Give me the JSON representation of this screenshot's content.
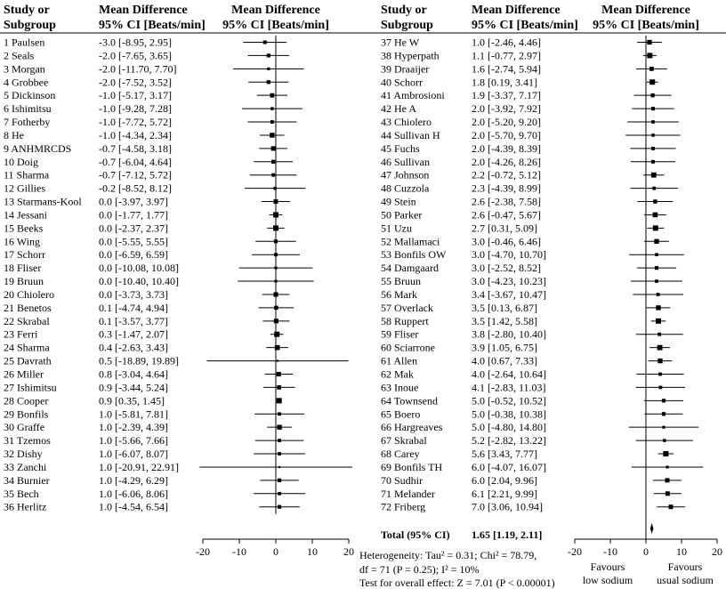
{
  "headers": {
    "study_line1": "Study or",
    "study_line2": "Subgroup",
    "md_line1": "Mean Difference",
    "md_line2": "95% CI [Beats/min]"
  },
  "chart_data": {
    "type": "forest",
    "measure": "Mean Difference, 95% CI [Beats/min]",
    "xlim": [
      -20,
      20
    ],
    "xticks": [
      "-20",
      "-10",
      "0",
      "10",
      "20"
    ],
    "studies": [
      {
        "id": 1,
        "name": "Paulsen",
        "md": -3.0,
        "ci": "-3.0 [-8.95, 2.95]",
        "lo": -8.95,
        "hi": 2.95
      },
      {
        "id": 2,
        "name": "Seals",
        "md": -2.0,
        "ci": "-2.0 [-7.65, 3.65]",
        "lo": -7.65,
        "hi": 3.65
      },
      {
        "id": 3,
        "name": "Morgan",
        "md": -2.0,
        "ci": "-2.0 [-11.70, 7.70]",
        "lo": -11.7,
        "hi": 7.7
      },
      {
        "id": 4,
        "name": "Grobbee",
        "md": -2.0,
        "ci": "-2.0 [-7.52, 3.52]",
        "lo": -7.52,
        "hi": 3.52
      },
      {
        "id": 5,
        "name": "Dickinson",
        "md": -1.0,
        "ci": "-1.0 [-5.17, 3.17]",
        "lo": -5.17,
        "hi": 3.17
      },
      {
        "id": 6,
        "name": "Ishimitsu",
        "md": -1.0,
        "ci": "-1.0 [-9.28, 7.28]",
        "lo": -9.28,
        "hi": 7.28
      },
      {
        "id": 7,
        "name": "Fotherby",
        "md": -1.0,
        "ci": "-1.0 [-7.72, 5.72]",
        "lo": -7.72,
        "hi": 5.72
      },
      {
        "id": 8,
        "name": "He",
        "md": -1.0,
        "ci": "-1.0 [-4.34, 2.34]",
        "lo": -4.34,
        "hi": 2.34
      },
      {
        "id": 9,
        "name": "ANHMRCDS",
        "md": -0.7,
        "ci": "-0.7 [-4.58, 3.18]",
        "lo": -4.58,
        "hi": 3.18
      },
      {
        "id": 10,
        "name": "Doig",
        "md": -0.7,
        "ci": "-0.7 [-6.04, 4.64]",
        "lo": -6.04,
        "hi": 4.64
      },
      {
        "id": 11,
        "name": "Sharma",
        "md": -0.7,
        "ci": "-0.7 [-7.12, 5.72]",
        "lo": -7.12,
        "hi": 5.72
      },
      {
        "id": 12,
        "name": "Gillies",
        "md": -0.2,
        "ci": "-0.2 [-8.52, 8.12]",
        "lo": -8.52,
        "hi": 8.12
      },
      {
        "id": 13,
        "name": "Starmans-Kool",
        "md": 0.0,
        "ci": "0.0 [-3.97, 3.97]",
        "lo": -3.97,
        "hi": 3.97
      },
      {
        "id": 14,
        "name": "Jessani",
        "md": 0.0,
        "ci": "0.0 [-1.77, 1.77]",
        "lo": -1.77,
        "hi": 1.77
      },
      {
        "id": 15,
        "name": "Beeks",
        "md": 0.0,
        "ci": "0.0 [-2.37, 2.37]",
        "lo": -2.37,
        "hi": 2.37
      },
      {
        "id": 16,
        "name": "Wing",
        "md": 0.0,
        "ci": "0.0 [-5.55, 5.55]",
        "lo": -5.55,
        "hi": 5.55
      },
      {
        "id": 17,
        "name": "Schorr",
        "md": 0.0,
        "ci": "0.0 [-6.59, 6.59]",
        "lo": -6.59,
        "hi": 6.59
      },
      {
        "id": 18,
        "name": "Fliser",
        "md": 0.0,
        "ci": "0.0 [-10.08, 10.08]",
        "lo": -10.08,
        "hi": 10.08
      },
      {
        "id": 19,
        "name": "Bruun",
        "md": 0.0,
        "ci": "0.0 [-10.40, 10.40]",
        "lo": -10.4,
        "hi": 10.4
      },
      {
        "id": 20,
        "name": "Chiolero",
        "md": 0.0,
        "ci": "0.0 [-3.73, 3.73]",
        "lo": -3.73,
        "hi": 3.73
      },
      {
        "id": 21,
        "name": "Benetos",
        "md": 0.1,
        "ci": "0.1 [-4.74, 4.94]",
        "lo": -4.74,
        "hi": 4.94
      },
      {
        "id": 22,
        "name": "Skrabal",
        "md": 0.1,
        "ci": "0.1 [-3.57, 3.77]",
        "lo": -3.57,
        "hi": 3.77
      },
      {
        "id": 23,
        "name": "Ferri",
        "md": 0.3,
        "ci": "0.3 [-1.47, 2.07]",
        "lo": -1.47,
        "hi": 2.07
      },
      {
        "id": 24,
        "name": "Sharma",
        "md": 0.4,
        "ci": "0.4 [-2.63, 3.43]",
        "lo": -2.63,
        "hi": 3.43
      },
      {
        "id": 25,
        "name": "Davrath",
        "md": 0.5,
        "ci": "0.5 [-18.89, 19.89]",
        "lo": -18.89,
        "hi": 19.89
      },
      {
        "id": 26,
        "name": "Miller",
        "md": 0.8,
        "ci": "0.8 [-3.04, 4.64]",
        "lo": -3.04,
        "hi": 4.64
      },
      {
        "id": 27,
        "name": "Ishimitsu",
        "md": 0.9,
        "ci": "0.9 [-3.44, 5.24]",
        "lo": -3.44,
        "hi": 5.24
      },
      {
        "id": 28,
        "name": "Cooper",
        "md": 0.9,
        "ci": "0.9 [0.35, 1.45]",
        "lo": 0.35,
        "hi": 1.45
      },
      {
        "id": 29,
        "name": "Bonfils",
        "md": 1.0,
        "ci": "1.0 [-5.81, 7.81]",
        "lo": -5.81,
        "hi": 7.81
      },
      {
        "id": 30,
        "name": "Graffe",
        "md": 1.0,
        "ci": "1.0 [-2.39, 4.39]",
        "lo": -2.39,
        "hi": 4.39
      },
      {
        "id": 31,
        "name": "Tzemos",
        "md": 1.0,
        "ci": "1.0 [-5.66, 7.66]",
        "lo": -5.66,
        "hi": 7.66
      },
      {
        "id": 32,
        "name": "Dishy",
        "md": 1.0,
        "ci": "1.0 [-6.07, 8.07]",
        "lo": -6.07,
        "hi": 8.07
      },
      {
        "id": 33,
        "name": "Zanchi",
        "md": 1.0,
        "ci": "1.0 [-20.91, 22.91]",
        "lo": -20.91,
        "hi": 22.91
      },
      {
        "id": 34,
        "name": "Burnier",
        "md": 1.0,
        "ci": "1.0 [-4.29, 6.29]",
        "lo": -4.29,
        "hi": 6.29
      },
      {
        "id": 35,
        "name": "Bech",
        "md": 1.0,
        "ci": "1.0 [-6.06, 8.06]",
        "lo": -6.06,
        "hi": 8.06
      },
      {
        "id": 36,
        "name": "Herlitz",
        "md": 1.0,
        "ci": "1.0 [-4.54, 6.54]",
        "lo": -4.54,
        "hi": 6.54
      },
      {
        "id": 37,
        "name": "He W",
        "md": 1.0,
        "ci": "1.0 [-2.46, 4.46]",
        "lo": -2.46,
        "hi": 4.46
      },
      {
        "id": 38,
        "name": "Hyperpath",
        "md": 1.1,
        "ci": "1.1 [-0.77, 2.97]",
        "lo": -0.77,
        "hi": 2.97
      },
      {
        "id": 39,
        "name": "Draaijer",
        "md": 1.6,
        "ci": "1.6 [-2.74, 5.94]",
        "lo": -2.74,
        "hi": 5.94
      },
      {
        "id": 40,
        "name": "Schorr",
        "md": 1.8,
        "ci": "1.8 [0.19, 3.41]",
        "lo": 0.19,
        "hi": 3.41
      },
      {
        "id": 41,
        "name": "Ambrosioni",
        "md": 1.9,
        "ci": "1.9 [-3.37, 7.17]",
        "lo": -3.37,
        "hi": 7.17
      },
      {
        "id": 42,
        "name": "He A",
        "md": 2.0,
        "ci": "2.0 [-3.92, 7.92]",
        "lo": -3.92,
        "hi": 7.92
      },
      {
        "id": 43,
        "name": "Chiolero",
        "md": 2.0,
        "ci": "2.0 [-5.20, 9.20]",
        "lo": -5.2,
        "hi": 9.2
      },
      {
        "id": 44,
        "name": "Sullivan H",
        "md": 2.0,
        "ci": "2.0 [-5.70, 9.70]",
        "lo": -5.7,
        "hi": 9.7
      },
      {
        "id": 45,
        "name": "Fuchs",
        "md": 2.0,
        "ci": "2.0 [-4.39, 8.39]",
        "lo": -4.39,
        "hi": 8.39
      },
      {
        "id": 46,
        "name": "Sullivan",
        "md": 2.0,
        "ci": "2.0 [-4.26, 8.26]",
        "lo": -4.26,
        "hi": 8.26
      },
      {
        "id": 47,
        "name": "Johnson",
        "md": 2.2,
        "ci": "2.2 [-0.72, 5.12]",
        "lo": -0.72,
        "hi": 5.12
      },
      {
        "id": 48,
        "name": "Cuzzola",
        "md": 2.3,
        "ci": "2.3 [-4.39, 8.99]",
        "lo": -4.39,
        "hi": 8.99
      },
      {
        "id": 49,
        "name": "Stein",
        "md": 2.6,
        "ci": "2.6 [-2.38, 7.58]",
        "lo": -2.38,
        "hi": 7.58
      },
      {
        "id": 50,
        "name": "Parker",
        "md": 2.6,
        "ci": "2.6 [-0.47, 5.67]",
        "lo": -0.47,
        "hi": 5.67
      },
      {
        "id": 51,
        "name": "Uzu",
        "md": 2.7,
        "ci": "2.7 [0.31, 5.09]",
        "lo": 0.31,
        "hi": 5.09
      },
      {
        "id": 52,
        "name": "Mallamaci",
        "md": 3.0,
        "ci": "3.0 [-0.46, 6.46]",
        "lo": -0.46,
        "hi": 6.46
      },
      {
        "id": 53,
        "name": "Bonfils OW",
        "md": 3.0,
        "ci": "3.0 [-4.70, 10.70]",
        "lo": -4.7,
        "hi": 10.7
      },
      {
        "id": 54,
        "name": "Damgaard",
        "md": 3.0,
        "ci": "3.0 [-2.52, 8.52]",
        "lo": -2.52,
        "hi": 8.52
      },
      {
        "id": 55,
        "name": "Bruun",
        "md": 3.0,
        "ci": "3.0 [-4.23, 10.23]",
        "lo": -4.23,
        "hi": 10.23
      },
      {
        "id": 56,
        "name": "Mark",
        "md": 3.4,
        "ci": "3.4 [-3.67, 10.47]",
        "lo": -3.67,
        "hi": 10.47
      },
      {
        "id": 57,
        "name": "Overlack",
        "md": 3.5,
        "ci": "3.5 [0.13, 6.87]",
        "lo": 0.13,
        "hi": 6.87
      },
      {
        "id": 58,
        "name": "Ruppert",
        "md": 3.5,
        "ci": "3.5 [1.42, 5.58]",
        "lo": 1.42,
        "hi": 5.58
      },
      {
        "id": 59,
        "name": "Fliser",
        "md": 3.8,
        "ci": "3.8 [-2.80, 10.40]",
        "lo": -2.8,
        "hi": 10.4
      },
      {
        "id": 60,
        "name": "Sciarrone",
        "md": 3.9,
        "ci": "3.9 [1.05, 6.75]",
        "lo": 1.05,
        "hi": 6.75
      },
      {
        "id": 61,
        "name": "Allen",
        "md": 4.0,
        "ci": "4.0 [0.67, 7.33]",
        "lo": 0.67,
        "hi": 7.33
      },
      {
        "id": 62,
        "name": "Mak",
        "md": 4.0,
        "ci": "4.0 [-2.64, 10.64]",
        "lo": -2.64,
        "hi": 10.64
      },
      {
        "id": 63,
        "name": "Inoue",
        "md": 4.1,
        "ci": "4.1 [-2.83, 11.03]",
        "lo": -2.83,
        "hi": 11.03
      },
      {
        "id": 64,
        "name": "Townsend",
        "md": 5.0,
        "ci": "5.0 [-0.52, 10.52]",
        "lo": -0.52,
        "hi": 10.52
      },
      {
        "id": 65,
        "name": "Boero",
        "md": 5.0,
        "ci": "5.0 [-0.38, 10.38]",
        "lo": -0.38,
        "hi": 10.38
      },
      {
        "id": 66,
        "name": "Hargreaves",
        "md": 5.0,
        "ci": "5.0 [-4.80, 14.80]",
        "lo": -4.8,
        "hi": 14.8
      },
      {
        "id": 67,
        "name": "Skrabal",
        "md": 5.2,
        "ci": "5.2 [-2.82, 13.22]",
        "lo": -2.82,
        "hi": 13.22
      },
      {
        "id": 68,
        "name": "Carey",
        "md": 5.6,
        "ci": "5.6 [3.43, 7.77]",
        "lo": 3.43,
        "hi": 7.77
      },
      {
        "id": 69,
        "name": "Bonfils TH",
        "md": 6.0,
        "ci": "6.0 [-4.07, 16.07]",
        "lo": -4.07,
        "hi": 16.07
      },
      {
        "id": 70,
        "name": "Sudhir",
        "md": 6.0,
        "ci": "6.0 [2.04, 9.96]",
        "lo": 2.04,
        "hi": 9.96
      },
      {
        "id": 71,
        "name": "Melander",
        "md": 6.1,
        "ci": "6.1 [2.21, 9.99]",
        "lo": 2.21,
        "hi": 9.99
      },
      {
        "id": 72,
        "name": "Friberg",
        "md": 7.0,
        "ci": "7.0 [3.06, 10.94]",
        "lo": 3.06,
        "hi": 10.94
      }
    ],
    "total": {
      "label": "Total (95% CI)",
      "md": 1.65,
      "value": "1.65 [1.19, 2.11]",
      "lo": 1.19,
      "hi": 2.11
    },
    "heterogeneity_line1": "Heterogeneity: Tau² = 0.31; Chi² = 78.79,",
    "heterogeneity_line2": "df = 71 (P = 0.25); I² = 10%",
    "overall_effect": "Test for overall effect: Z = 7.01 (P < 0.00001)",
    "favours_left_line1": "Favours",
    "favours_left_line2": "low sodium",
    "favours_right_line1": "Favours",
    "favours_right_line2": "usual sodium"
  }
}
